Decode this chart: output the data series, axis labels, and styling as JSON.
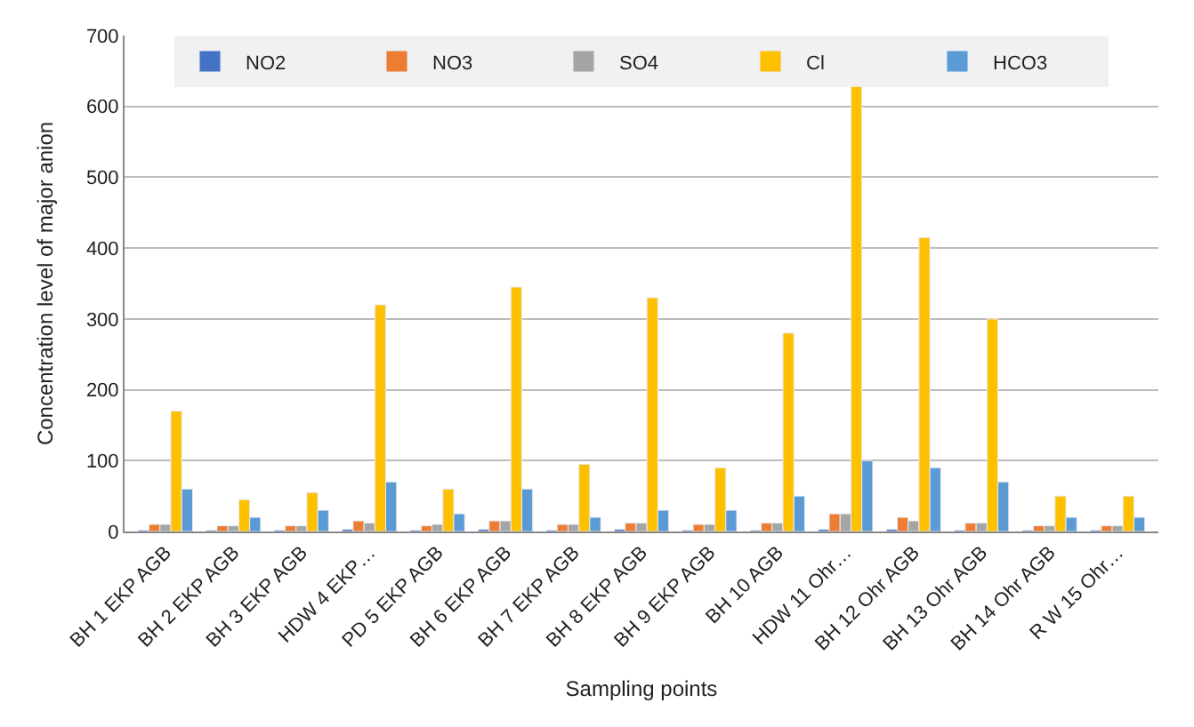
{
  "chart_data": {
    "type": "bar",
    "xlabel": "Sampling points",
    "ylabel": "Concentration level of major anion",
    "categories": [
      "BH 1 EKP AGB",
      "BH 2 EKP AGB",
      "BH 3 EKP AGB",
      "HDW 4 EKP…",
      "PD 5 EKP AGB",
      "BH 6 EKP AGB",
      "BH 7 EKP AGB",
      "BH 8 EKP AGB",
      "BH 9 EKP AGB",
      "BH 10 AGB",
      "HDW 11 Ohr…",
      "BH 12 Ohr AGB",
      "BH 13 Ohr AGB",
      "BH 14 Ohr AGB",
      "R W 15 Ohr…"
    ],
    "series": [
      {
        "name": "NO2",
        "color": "#4472c4",
        "values": [
          2,
          2,
          2,
          3,
          2,
          3,
          2,
          3,
          2,
          2,
          3,
          3,
          2,
          2,
          2
        ]
      },
      {
        "name": "NO3",
        "color": "#ed7d31",
        "values": [
          10,
          8,
          8,
          15,
          8,
          15,
          10,
          12,
          10,
          12,
          25,
          20,
          12,
          8,
          8
        ]
      },
      {
        "name": "SO4",
        "color": "#a5a5a5",
        "values": [
          10,
          8,
          8,
          12,
          10,
          15,
          10,
          12,
          10,
          12,
          25,
          15,
          12,
          8,
          8
        ]
      },
      {
        "name": "Cl",
        "color": "#ffc000",
        "values": [
          170,
          45,
          55,
          320,
          60,
          345,
          95,
          330,
          90,
          280,
          630,
          415,
          300,
          50,
          50
        ]
      },
      {
        "name": "HCO3",
        "color": "#5b9bd5",
        "values": [
          60,
          20,
          30,
          70,
          25,
          60,
          20,
          30,
          30,
          50,
          100,
          90,
          70,
          20,
          20
        ]
      }
    ],
    "ylim": [
      0,
      700
    ],
    "yticks": [
      0,
      100,
      200,
      300,
      400,
      500,
      600,
      700
    ],
    "grid": "y",
    "legend": "top"
  }
}
